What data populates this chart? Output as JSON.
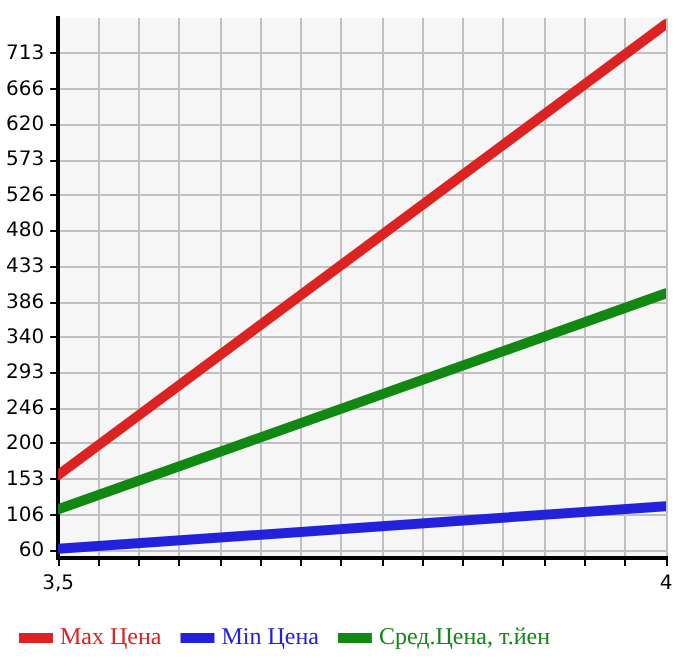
{
  "chart_data": {
    "type": "line",
    "x": [
      3.5,
      4
    ],
    "series": [
      {
        "name": "Max Цена",
        "color": "#dd2222",
        "values": [
          159,
          752
        ]
      },
      {
        "name": "Min Цена",
        "color": "#2222dd",
        "values": [
          62,
          118
        ]
      },
      {
        "name": "Сред.Цена, т.йен",
        "color": "#118811",
        "values": [
          114,
          398
        ]
      }
    ],
    "xlim": [
      3.5,
      4
    ],
    "xticks": [
      {
        "value": 3.5,
        "label": "3,5"
      },
      {
        "value": 3.5333,
        "label": null
      },
      {
        "value": 3.5667,
        "label": null
      },
      {
        "value": 3.6,
        "label": null
      },
      {
        "value": 3.6333,
        "label": null
      },
      {
        "value": 3.6667,
        "label": null
      },
      {
        "value": 3.7,
        "label": null
      },
      {
        "value": 3.7333,
        "label": null
      },
      {
        "value": 3.7667,
        "label": null
      },
      {
        "value": 3.8,
        "label": null
      },
      {
        "value": 3.8333,
        "label": null
      },
      {
        "value": 3.8667,
        "label": null
      },
      {
        "value": 3.9,
        "label": null
      },
      {
        "value": 3.9333,
        "label": null
      },
      {
        "value": 3.9667,
        "label": null
      },
      4
    ],
    "ylim": [
      50,
      760
    ],
    "yticks": [
      60,
      106,
      153,
      200,
      246,
      293,
      340,
      386,
      433,
      480,
      526,
      573,
      620,
      666,
      713
    ],
    "grid": true,
    "legend": "bottom",
    "marker": "none",
    "line_style": "solid"
  }
}
